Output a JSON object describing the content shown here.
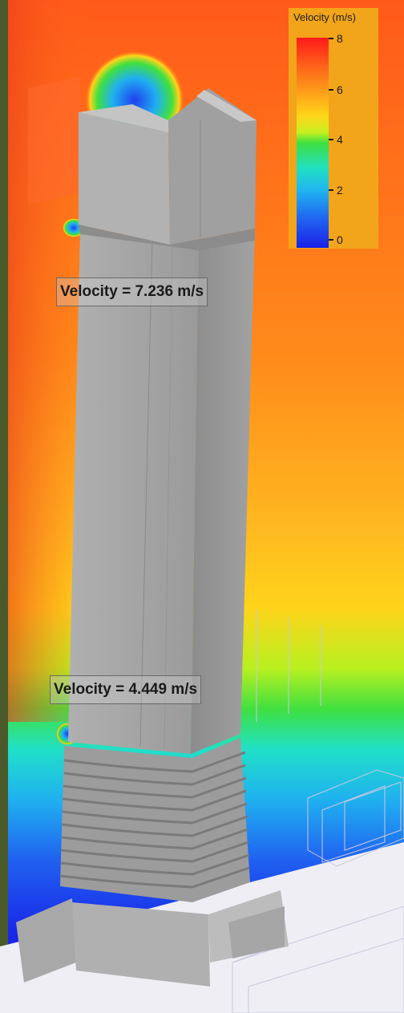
{
  "legend": {
    "title": "Velocity (m/s)",
    "ticks": [
      "8",
      "6",
      "4",
      "2",
      "0"
    ]
  },
  "probes": [
    {
      "label": "Velocity = 7.236 m/s"
    },
    {
      "label": "Velocity = 4.449 m/s"
    }
  ],
  "colors": {
    "high": "#ff1a1a",
    "mid_high": "#ff9a1a",
    "mid": "#ffd41a",
    "mid_low": "#40e040",
    "low_mid": "#20b8f0",
    "low": "#1a20e8",
    "building": "#a8a8a8"
  }
}
